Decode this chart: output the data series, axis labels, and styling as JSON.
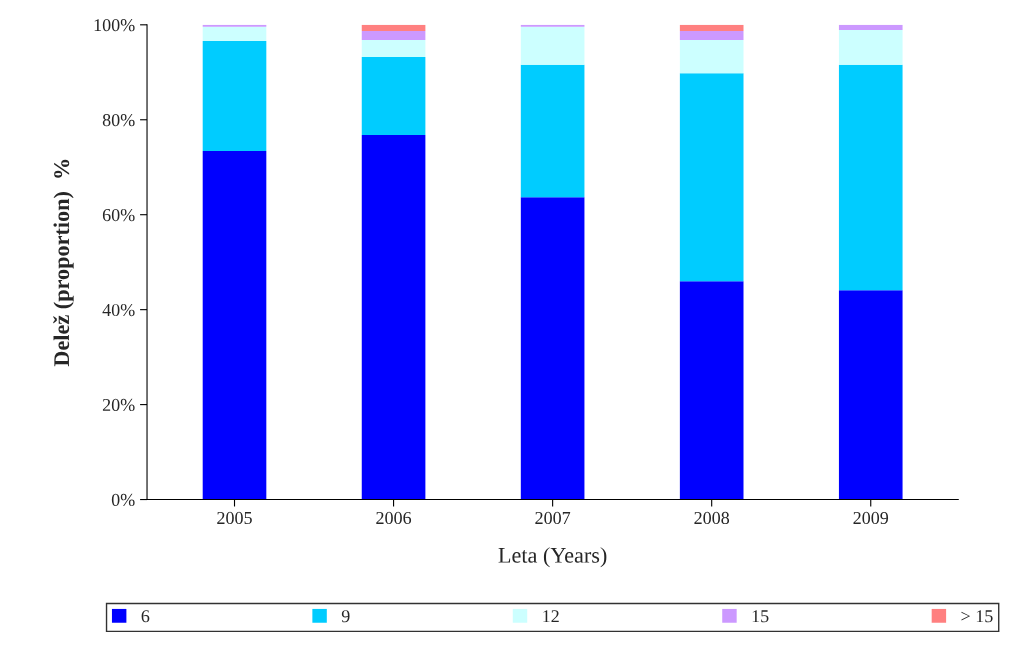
{
  "chart_data": {
    "type": "bar",
    "stacked": true,
    "xlabel": "Leta (Years)",
    "ylabel": "Delež (proportion)  %",
    "categories": [
      "2005",
      "2006",
      "2007",
      "2008",
      "2009"
    ],
    "series": [
      {
        "name": "6",
        "color": "#0000ff",
        "values": [
          73.4,
          76.8,
          63.7,
          46.0,
          44.1
        ]
      },
      {
        "name": "9",
        "color": "#00ccff",
        "values": [
          23.2,
          16.4,
          27.9,
          43.8,
          47.5
        ]
      },
      {
        "name": "12",
        "color": "#ccffff",
        "values": [
          3.0,
          3.6,
          8.0,
          7.0,
          7.3
        ]
      },
      {
        "name": "15",
        "color": "#cc99ff",
        "values": [
          0.4,
          1.9,
          0.4,
          1.9,
          1.1
        ]
      },
      {
        "name": "> 15",
        "color": "#ff8080",
        "values": [
          0,
          1.3,
          0,
          1.3,
          0
        ]
      }
    ],
    "ylim": [
      0,
      100
    ],
    "yticks": [
      {
        "value": 0,
        "label": "0%"
      },
      {
        "value": 20,
        "label": "20%"
      },
      {
        "value": 40,
        "label": "40%"
      },
      {
        "value": 60,
        "label": "60%"
      },
      {
        "value": 80,
        "label": "80%"
      },
      {
        "value": 100,
        "label": "100%"
      }
    ],
    "grid": false,
    "legend": "bottom"
  }
}
